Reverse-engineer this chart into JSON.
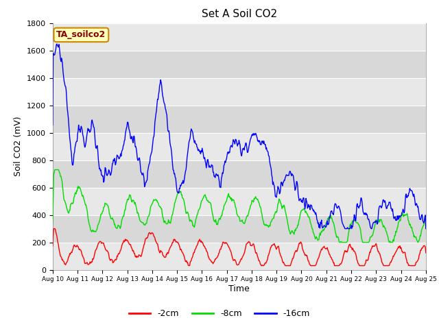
{
  "title": "Set A Soil CO2",
  "ylabel": "Soil CO2 (mV)",
  "xlabel": "Time",
  "legend_label": "TA_soilco2",
  "ylim": [
    0,
    1800
  ],
  "yticks": [
    0,
    200,
    400,
    600,
    800,
    1000,
    1200,
    1400,
    1600,
    1800
  ],
  "series": {
    "red": {
      "label": "-2cm",
      "color": "#ff0000"
    },
    "green": {
      "label": "-8cm",
      "color": "#00dd00"
    },
    "blue": {
      "label": "-16cm",
      "color": "#0000ff"
    }
  },
  "xtick_labels": [
    "Aug 10",
    "Aug 11",
    "Aug 12",
    "Aug 13",
    "Aug 14",
    "Aug 15",
    "Aug 16",
    "Aug 17",
    "Aug 18",
    "Aug 19",
    "Aug 20",
    "Aug 21",
    "Aug 22",
    "Aug 23",
    "Aug 24",
    "Aug 25"
  ],
  "title_fontsize": 11,
  "axis_bg_color": "#d8d8d8",
  "fig_bg_color": "#ffffff",
  "grid_color": "#ffffff",
  "band_colors": [
    "#e8e8e8",
    "#d0d0d0"
  ]
}
